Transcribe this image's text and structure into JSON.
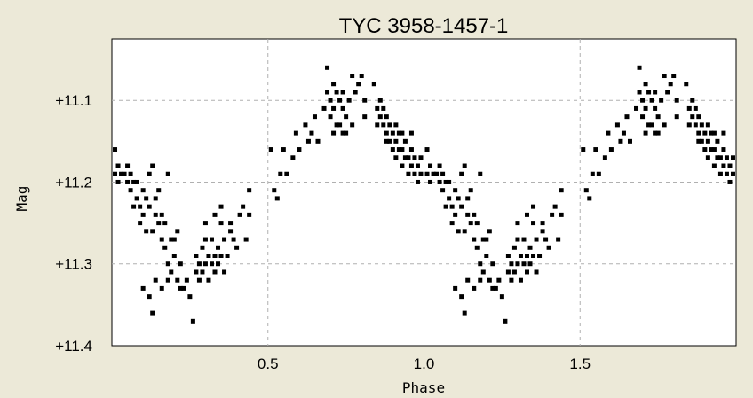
{
  "chart_data": {
    "type": "scatter",
    "title": "TYC 3958-1457-1",
    "xlabel": "Phase",
    "ylabel": "Mag",
    "xlim": [
      0.0,
      2.0
    ],
    "ylim": [
      11.4,
      11.025
    ],
    "y_inverted": true,
    "grid": true,
    "x_ticks": [
      {
        "value": 0.5,
        "label": "0.5"
      },
      {
        "value": 1.0,
        "label": "1.0"
      },
      {
        "value": 1.5,
        "label": "1.5"
      }
    ],
    "y_ticks": [
      {
        "value": 11.1,
        "label": "+11.1"
      },
      {
        "value": 11.2,
        "label": "+11.2"
      },
      {
        "value": 11.3,
        "label": "+11.3"
      },
      {
        "value": 11.4,
        "label": "+11.4"
      }
    ],
    "period_repeat": 1.0,
    "points": [
      [
        0.01,
        11.16
      ],
      [
        0.01,
        11.19
      ],
      [
        0.02,
        11.18
      ],
      [
        0.02,
        11.2
      ],
      [
        0.03,
        11.19
      ],
      [
        0.04,
        11.19
      ],
      [
        0.05,
        11.18
      ],
      [
        0.05,
        11.2
      ],
      [
        0.06,
        11.19
      ],
      [
        0.06,
        11.21
      ],
      [
        0.07,
        11.2
      ],
      [
        0.07,
        11.23
      ],
      [
        0.08,
        11.22
      ],
      [
        0.08,
        11.2
      ],
      [
        0.09,
        11.23
      ],
      [
        0.09,
        11.25
      ],
      [
        0.1,
        11.21
      ],
      [
        0.1,
        11.24
      ],
      [
        0.11,
        11.22
      ],
      [
        0.11,
        11.26
      ],
      [
        0.12,
        11.19
      ],
      [
        0.12,
        11.23
      ],
      [
        0.13,
        11.18
      ],
      [
        0.13,
        11.26
      ],
      [
        0.14,
        11.22
      ],
      [
        0.14,
        11.24
      ],
      [
        0.15,
        11.21
      ],
      [
        0.15,
        11.25
      ],
      [
        0.16,
        11.24
      ],
      [
        0.16,
        11.27
      ],
      [
        0.17,
        11.25
      ],
      [
        0.17,
        11.28
      ],
      [
        0.18,
        11.19
      ],
      [
        0.18,
        11.3
      ],
      [
        0.19,
        11.27
      ],
      [
        0.19,
        11.31
      ],
      [
        0.2,
        11.27
      ],
      [
        0.2,
        11.29
      ],
      [
        0.21,
        11.26
      ],
      [
        0.21,
        11.32
      ],
      [
        0.22,
        11.3
      ],
      [
        0.22,
        11.33
      ],
      [
        0.23,
        11.33
      ],
      [
        0.24,
        11.32
      ],
      [
        0.25,
        11.34
      ],
      [
        0.26,
        11.37
      ],
      [
        0.27,
        11.31
      ],
      [
        0.27,
        11.29
      ],
      [
        0.28,
        11.3
      ],
      [
        0.28,
        11.32
      ],
      [
        0.29,
        11.28
      ],
      [
        0.29,
        11.31
      ],
      [
        0.3,
        11.27
      ],
      [
        0.3,
        11.3
      ],
      [
        0.31,
        11.29
      ],
      [
        0.31,
        11.32
      ],
      [
        0.32,
        11.27
      ],
      [
        0.32,
        11.3
      ],
      [
        0.33,
        11.29
      ],
      [
        0.33,
        11.31
      ],
      [
        0.34,
        11.28
      ],
      [
        0.34,
        11.3
      ],
      [
        0.35,
        11.25
      ],
      [
        0.35,
        11.29
      ],
      [
        0.36,
        11.27
      ],
      [
        0.36,
        11.31
      ],
      [
        0.37,
        11.29
      ],
      [
        0.38,
        11.26
      ],
      [
        0.39,
        11.27
      ],
      [
        0.4,
        11.28
      ],
      [
        0.41,
        11.24
      ],
      [
        0.42,
        11.23
      ],
      [
        0.43,
        11.27
      ],
      [
        0.44,
        11.21
      ],
      [
        0.44,
        11.24
      ],
      [
        0.1,
        11.33
      ],
      [
        0.12,
        11.34
      ],
      [
        0.14,
        11.32
      ],
      [
        0.16,
        11.33
      ],
      [
        0.18,
        11.32
      ],
      [
        0.13,
        11.36
      ],
      [
        0.33,
        11.24
      ],
      [
        0.35,
        11.23
      ],
      [
        0.38,
        11.25
      ],
      [
        0.3,
        11.25
      ],
      [
        0.51,
        11.16
      ],
      [
        0.52,
        11.21
      ],
      [
        0.53,
        11.22
      ],
      [
        0.54,
        11.19
      ],
      [
        0.55,
        11.16
      ],
      [
        0.56,
        11.19
      ],
      [
        0.58,
        11.17
      ],
      [
        0.59,
        11.14
      ],
      [
        0.6,
        11.16
      ],
      [
        0.62,
        11.13
      ],
      [
        0.63,
        11.15
      ],
      [
        0.64,
        11.14
      ],
      [
        0.65,
        11.12
      ],
      [
        0.66,
        11.15
      ],
      [
        0.68,
        11.11
      ],
      [
        0.69,
        11.09
      ],
      [
        0.69,
        11.06
      ],
      [
        0.7,
        11.1
      ],
      [
        0.7,
        11.12
      ],
      [
        0.71,
        11.08
      ],
      [
        0.71,
        11.11
      ],
      [
        0.72,
        11.13
      ],
      [
        0.72,
        11.09
      ],
      [
        0.73,
        11.1
      ],
      [
        0.73,
        11.13
      ],
      [
        0.74,
        11.11
      ],
      [
        0.74,
        11.14
      ],
      [
        0.75,
        11.12
      ],
      [
        0.75,
        11.14
      ],
      [
        0.76,
        11.1
      ],
      [
        0.77,
        11.13
      ],
      [
        0.78,
        11.09
      ],
      [
        0.79,
        11.08
      ],
      [
        0.8,
        11.07
      ],
      [
        0.81,
        11.1
      ],
      [
        0.81,
        11.12
      ],
      [
        0.84,
        11.08
      ],
      [
        0.85,
        11.11
      ],
      [
        0.86,
        11.12
      ],
      [
        0.86,
        11.1
      ],
      [
        0.87,
        11.13
      ],
      [
        0.87,
        11.11
      ],
      [
        0.88,
        11.12
      ],
      [
        0.88,
        11.14
      ],
      [
        0.89,
        11.13
      ],
      [
        0.89,
        11.15
      ],
      [
        0.9,
        11.14
      ],
      [
        0.9,
        11.16
      ],
      [
        0.91,
        11.15
      ],
      [
        0.91,
        11.17
      ],
      [
        0.92,
        11.14
      ],
      [
        0.92,
        11.16
      ],
      [
        0.93,
        11.16
      ],
      [
        0.93,
        11.18
      ],
      [
        0.94,
        11.15
      ],
      [
        0.94,
        11.17
      ],
      [
        0.95,
        11.17
      ],
      [
        0.95,
        11.19
      ],
      [
        0.96,
        11.16
      ],
      [
        0.96,
        11.18
      ],
      [
        0.97,
        11.17
      ],
      [
        0.97,
        11.19
      ],
      [
        0.98,
        11.18
      ],
      [
        0.98,
        11.2
      ],
      [
        0.99,
        11.19
      ],
      [
        0.99,
        11.17
      ],
      [
        0.77,
        11.07
      ],
      [
        0.71,
        11.14
      ],
      [
        0.74,
        11.09
      ],
      [
        0.85,
        11.13
      ],
      [
        0.88,
        11.15
      ],
      [
        0.91,
        11.13
      ],
      [
        0.93,
        11.14
      ],
      [
        0.96,
        11.14
      ]
    ]
  }
}
